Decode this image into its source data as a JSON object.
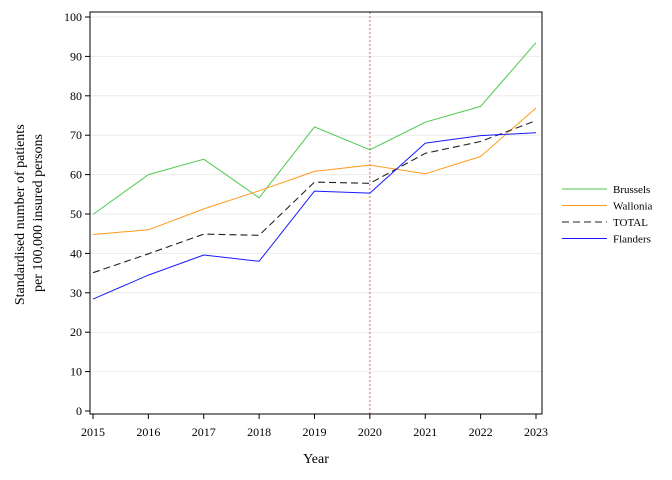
{
  "chart_data": {
    "type": "line",
    "xlabel": "Year",
    "ylabel_lines": [
      "Standardised number of patients",
      "per 100,000 insured persons"
    ],
    "x": [
      2015,
      2016,
      2017,
      2018,
      2019,
      2020,
      2021,
      2022,
      2023
    ],
    "xlim": [
      2015,
      2023
    ],
    "ylim": [
      0,
      100
    ],
    "yticks": [
      0,
      10,
      20,
      30,
      40,
      50,
      60,
      70,
      80,
      90,
      100
    ],
    "grid": "horizontal",
    "legend_position": "right",
    "reference_line": {
      "x": 2020,
      "color": "#e06060",
      "style": "dotted"
    },
    "series": [
      {
        "name": "Brussels",
        "color": "#4cc94c",
        "dash": "",
        "width": 1,
        "values": [
          49.9,
          60.0,
          63.9,
          54.1,
          72.1,
          66.3,
          73.3,
          77.3,
          93.5
        ]
      },
      {
        "name": "Wallonia",
        "color": "#ff9a1a",
        "dash": "",
        "width": 1,
        "values": [
          44.8,
          46.0,
          51.3,
          55.9,
          60.8,
          62.4,
          60.2,
          64.6,
          76.9
        ]
      },
      {
        "name": "TOTAL",
        "color": "#222222",
        "dash": "7,4",
        "width": 1.1,
        "values": [
          35.1,
          39.9,
          44.9,
          44.6,
          58.1,
          57.8,
          65.4,
          68.4,
          73.7
        ]
      },
      {
        "name": "Flanders",
        "color": "#1a1aff",
        "dash": "",
        "width": 1,
        "values": [
          28.4,
          34.5,
          39.6,
          38.0,
          55.8,
          55.3,
          68.0,
          69.9,
          70.6
        ]
      }
    ]
  }
}
